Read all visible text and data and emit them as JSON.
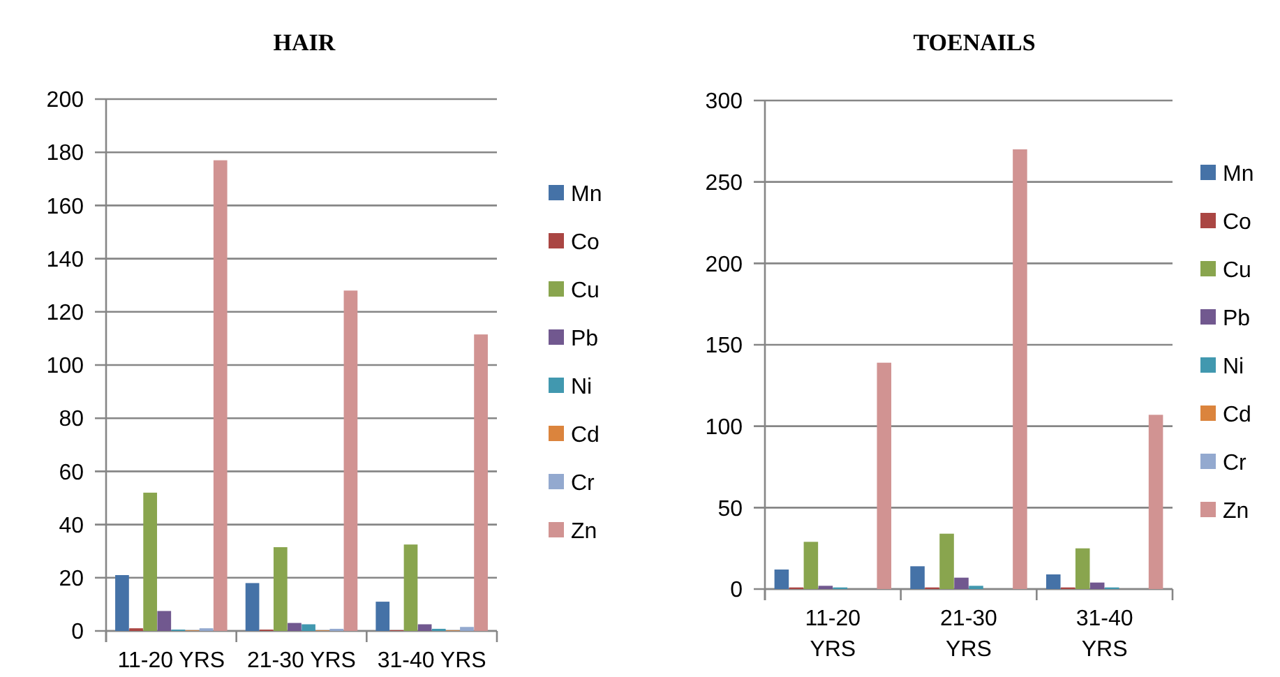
{
  "chart_data": [
    {
      "type": "bar",
      "title": "HAIR",
      "categories": [
        "11-20 YRS",
        "21-30 YRS",
        "31-40 YRS"
      ],
      "ylim": [
        0,
        200
      ],
      "yticks": [
        0,
        20,
        40,
        60,
        80,
        100,
        120,
        140,
        160,
        180,
        200
      ],
      "grid": "y",
      "legend": "right",
      "series": [
        {
          "name": "Mn",
          "color": "#4572a7",
          "values": [
            21,
            18,
            11
          ]
        },
        {
          "name": "Co",
          "color": "#aa4643",
          "values": [
            1,
            0.5,
            0.3
          ]
        },
        {
          "name": "Cu",
          "color": "#89a54e",
          "values": [
            52,
            31.5,
            32.5
          ]
        },
        {
          "name": "Pb",
          "color": "#71588f",
          "values": [
            7.5,
            3,
            2.5
          ]
        },
        {
          "name": "Ni",
          "color": "#4198af",
          "values": [
            0.5,
            2.5,
            0.8
          ]
        },
        {
          "name": "Cd",
          "color": "#db843d",
          "values": [
            0.2,
            0.2,
            0.2
          ]
        },
        {
          "name": "Cr",
          "color": "#93a9cf",
          "values": [
            1,
            0.8,
            1.5
          ]
        },
        {
          "name": "Zn",
          "color": "#d19392",
          "values": [
            177,
            128,
            111.5
          ]
        }
      ]
    },
    {
      "type": "bar",
      "title": "TOENAILS",
      "categories": [
        "11-20 YRS",
        "21-30 YRS",
        "31-40 YRS"
      ],
      "ylim": [
        0,
        300
      ],
      "yticks": [
        0,
        50,
        100,
        150,
        200,
        250,
        300
      ],
      "grid": "y",
      "legend": "right",
      "series": [
        {
          "name": "Mn",
          "color": "#4572a7",
          "values": [
            12,
            14,
            9
          ]
        },
        {
          "name": "Co",
          "color": "#aa4643",
          "values": [
            1,
            1,
            1
          ]
        },
        {
          "name": "Cu",
          "color": "#89a54e",
          "values": [
            29,
            34,
            25
          ]
        },
        {
          "name": "Pb",
          "color": "#71588f",
          "values": [
            2,
            7,
            4
          ]
        },
        {
          "name": "Ni",
          "color": "#4198af",
          "values": [
            1,
            2,
            1
          ]
        },
        {
          "name": "Cd",
          "color": "#db843d",
          "values": [
            0,
            0,
            0
          ]
        },
        {
          "name": "Cr",
          "color": "#93a9cf",
          "values": [
            0,
            0,
            0
          ]
        },
        {
          "name": "Zn",
          "color": "#d19392",
          "values": [
            139,
            270,
            107
          ]
        }
      ]
    }
  ]
}
